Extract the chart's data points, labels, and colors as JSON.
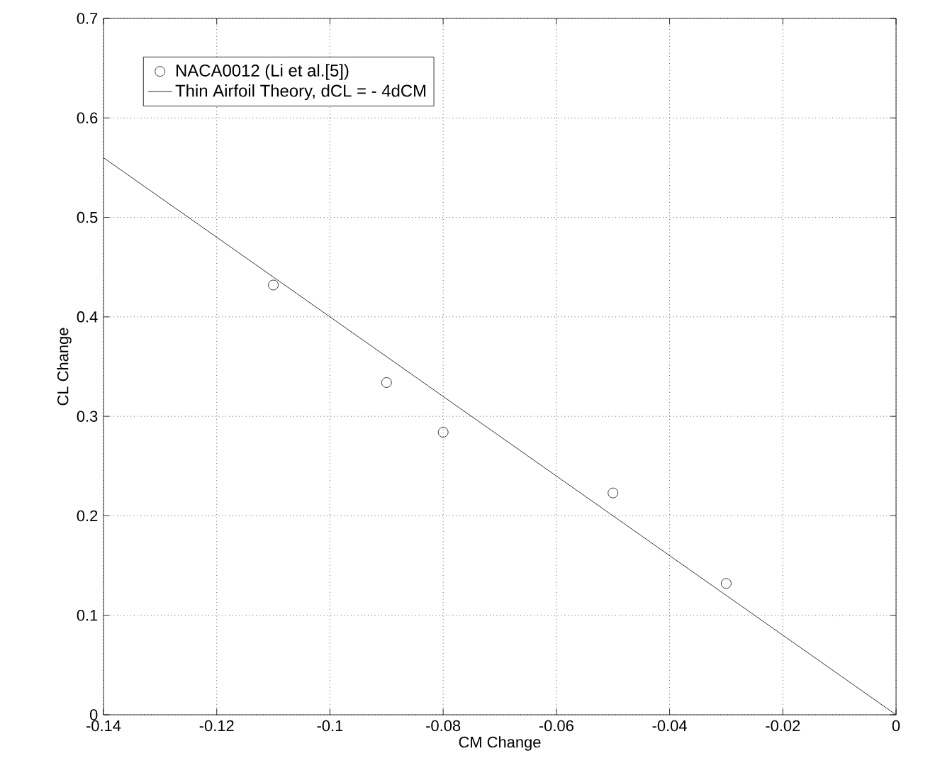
{
  "chart_data": {
    "type": "scatter",
    "xlabel": "CM Change",
    "ylabel": "CL Change",
    "xlim": [
      -0.14,
      0
    ],
    "ylim": [
      0,
      0.7
    ],
    "xticks": [
      -0.14,
      -0.12,
      -0.1,
      -0.08,
      -0.06,
      -0.04,
      -0.02,
      0
    ],
    "yticks": [
      0,
      0.1,
      0.2,
      0.3,
      0.4,
      0.5,
      0.6,
      0.7
    ],
    "grid": true,
    "legend": "top left",
    "series": [
      {
        "name": "NACA0012 (Li et al.[5])",
        "marker": "circle",
        "color": "#000000",
        "x": [
          -0.11,
          -0.09,
          -0.08,
          -0.05,
          -0.03
        ],
        "values": [
          0.432,
          0.334,
          0.284,
          0.223,
          0.132
        ]
      },
      {
        "name": "Thin Airfoil Theory, dCL = - 4dCM",
        "type": "line",
        "line_style": "solid",
        "color": "#000000",
        "x": [
          -0.14,
          0
        ],
        "values": [
          0.56,
          0
        ]
      }
    ]
  }
}
